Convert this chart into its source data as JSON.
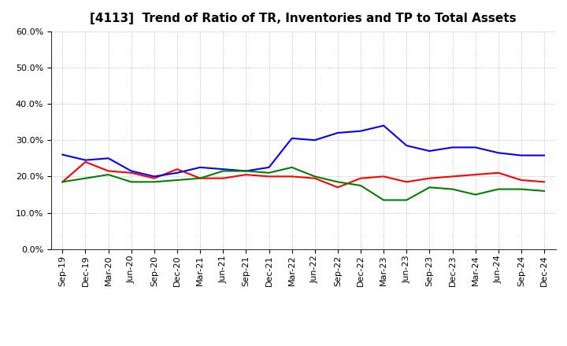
{
  "title": "[4113]  Trend of Ratio of TR, Inventories and TP to Total Assets",
  "labels": [
    "Sep-19",
    "Dec-19",
    "Mar-20",
    "Jun-20",
    "Sep-20",
    "Dec-20",
    "Mar-21",
    "Jun-21",
    "Sep-21",
    "Dec-21",
    "Mar-22",
    "Jun-22",
    "Sep-22",
    "Dec-22",
    "Mar-23",
    "Jun-23",
    "Sep-23",
    "Dec-23",
    "Mar-24",
    "Jun-24",
    "Sep-24",
    "Dec-24"
  ],
  "trade_receivables": [
    0.185,
    0.24,
    0.215,
    0.21,
    0.195,
    0.22,
    0.195,
    0.195,
    0.205,
    0.2,
    0.2,
    0.195,
    0.17,
    0.195,
    0.2,
    0.185,
    0.195,
    0.2,
    0.205,
    0.21,
    0.19,
    0.185
  ],
  "inventories": [
    0.26,
    0.245,
    0.25,
    0.215,
    0.2,
    0.21,
    0.225,
    0.22,
    0.215,
    0.225,
    0.305,
    0.3,
    0.32,
    0.325,
    0.34,
    0.285,
    0.27,
    0.28,
    0.28,
    0.265,
    0.258,
    0.258
  ],
  "trade_payables": [
    0.185,
    0.195,
    0.205,
    0.185,
    0.185,
    0.19,
    0.195,
    0.215,
    0.215,
    0.21,
    0.225,
    0.2,
    0.185,
    0.175,
    0.135,
    0.135,
    0.17,
    0.165,
    0.15,
    0.165,
    0.165,
    0.16
  ],
  "tr_color": "#ff0000",
  "inv_color": "#0000ff",
  "tp_color": "#008000",
  "ylim": [
    0.0,
    0.6
  ],
  "yticks": [
    0.0,
    0.1,
    0.2,
    0.3,
    0.4,
    0.5,
    0.6
  ],
  "plot_bg_color": "#ffffff",
  "fig_bg_color": "#ffffff",
  "grid_color": "#999999",
  "title_fontsize": 11,
  "legend_fontsize": 9,
  "tick_fontsize": 8
}
